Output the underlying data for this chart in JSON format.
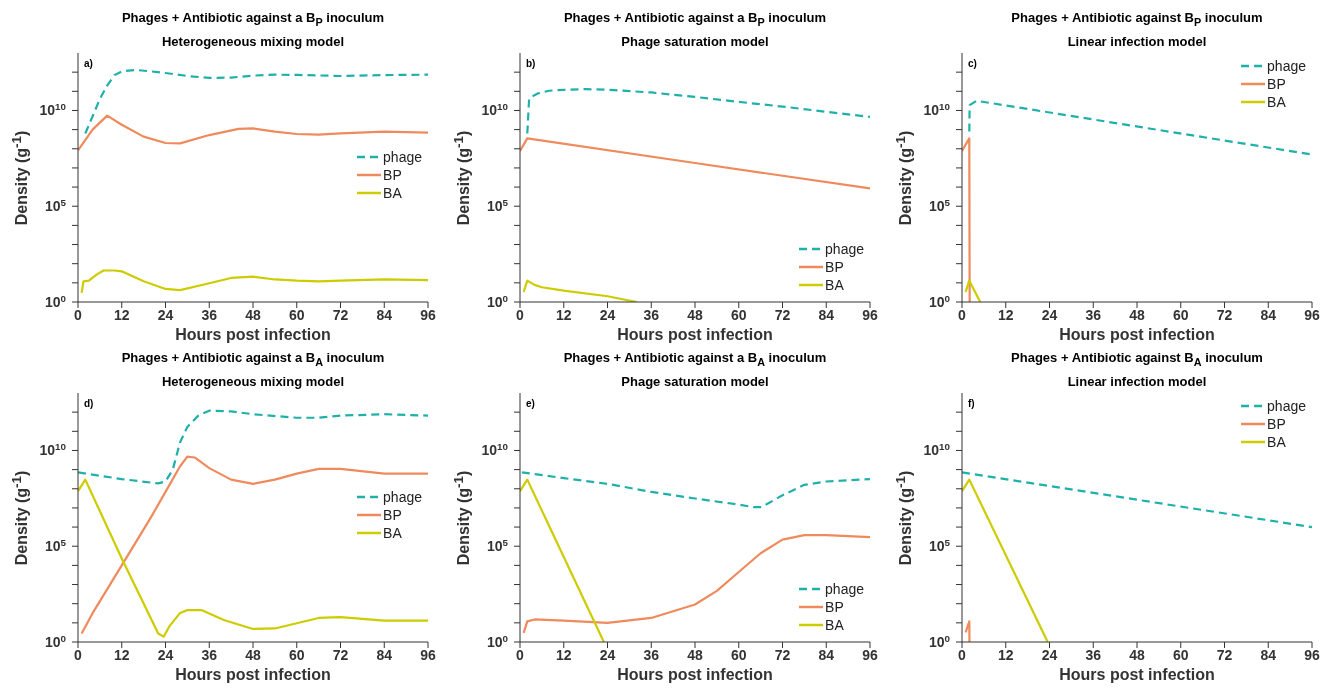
{
  "chart_data": [
    {
      "type": "line",
      "title": "Phages + Antibiotic against a B$_{P}$ inoculum",
      "subtitle": "Heterogeneous mixing model",
      "xlabel": "Hours post infection",
      "ylabel": "Density (g$^{-1}$)",
      "annotations": [
        "a)"
      ],
      "log": "y",
      "legend": "right",
      "xlim": [
        0,
        96
      ],
      "xticks": [
        0,
        12,
        24,
        36,
        48,
        60,
        72,
        84,
        96
      ],
      "ylim": [
        1,
        10000000000000.0
      ],
      "yticks": [
        {
          "value": 1,
          "label": "10$^{0}$"
        },
        {
          "value": 10,
          "label": null
        },
        {
          "value": 100,
          "label": null
        },
        {
          "value": 1000,
          "label": null
        },
        {
          "value": 10000,
          "label": null
        },
        {
          "value": 100000,
          "label": "10$^{5}$"
        },
        {
          "value": 1000000.0,
          "label": null
        },
        {
          "value": 10000000.0,
          "label": null
        },
        {
          "value": 100000000.0,
          "label": null
        },
        {
          "value": 1000000000.0,
          "label": null
        },
        {
          "value": 10000000000.0,
          "label": "10$^{10}$"
        },
        {
          "value": 100000000000.0,
          "label": null
        },
        {
          "value": 1000000000000.0,
          "label": null
        }
      ],
      "series": [
        {
          "name": "phage",
          "color": "#1fb0aa",
          "line_style": "dashed",
          "x": [
            2,
            4,
            6,
            8,
            10,
            12,
            16,
            20,
            24,
            30,
            36,
            42,
            48,
            54,
            60,
            72,
            84,
            96
          ],
          "values": [
            630000000.0,
            5000000000.0,
            40000000000.0,
            200000000000.0,
            700000000000.0,
            1100000000000.0,
            1300000000000.0,
            1100000000000.0,
            900000000000.0,
            630000000000.0,
            500000000000.0,
            520000000000.0,
            660000000000.0,
            740000000000.0,
            720000000000.0,
            630000000000.0,
            700000000000.0,
            740000000000.0
          ]
        },
        {
          "name": "BP",
          "color": "#ef8a5c",
          "line_style": "solid",
          "x": [
            0,
            4,
            8,
            12,
            18,
            24,
            28,
            36,
            44,
            48,
            54,
            60,
            66,
            72,
            84,
            96
          ],
          "values": [
            83000000.0,
            1000000000.0,
            5400000000.0,
            1800000000.0,
            430000000.0,
            200000000.0,
            190000000.0,
            520000000.0,
            1100000000.0,
            1150000000.0,
            790000000.0,
            590000000.0,
            550000000.0,
            630000000.0,
            790000000.0,
            690000000.0
          ]
        },
        {
          "name": "BA",
          "color": "#cccc00",
          "line_style": "solid",
          "x": [
            1,
            1.5,
            3,
            5,
            7,
            10,
            12,
            18,
            24,
            28,
            36,
            42,
            48,
            54,
            60,
            66,
            72,
            84,
            96
          ],
          "values": [
            3,
            12,
            13,
            26,
            44,
            44,
            40,
            12,
            4.8,
            4.2,
            9.5,
            18,
            21,
            15,
            13,
            12,
            13,
            15,
            14
          ]
        }
      ]
    },
    {
      "type": "line",
      "title": "Phages + Antibiotic against a B$_{P}$ inoculum",
      "subtitle": "Phage saturation model",
      "xlabel": "Hours post infection",
      "ylabel": "Density (g$^{-1}$)",
      "annotations": [
        "b)"
      ],
      "log": "y",
      "legend": "bottom right",
      "xlim": [
        0,
        96
      ],
      "xticks": [
        0,
        12,
        24,
        36,
        48,
        60,
        72,
        84,
        96
      ],
      "ylim": [
        1,
        10000000000000.0
      ],
      "yticks": [
        {
          "value": 1,
          "label": "10$^{0}$"
        },
        {
          "value": 10,
          "label": null
        },
        {
          "value": 100,
          "label": null
        },
        {
          "value": 1000,
          "label": null
        },
        {
          "value": 10000,
          "label": null
        },
        {
          "value": 100000,
          "label": "10$^{5}$"
        },
        {
          "value": 1000000.0,
          "label": null
        },
        {
          "value": 10000000.0,
          "label": null
        },
        {
          "value": 100000000.0,
          "label": null
        },
        {
          "value": 1000000000.0,
          "label": null
        },
        {
          "value": 10000000000.0,
          "label": "10$^{10}$"
        },
        {
          "value": 100000000000.0,
          "label": null
        },
        {
          "value": 1000000000000.0,
          "label": null
        }
      ],
      "series": [
        {
          "name": "phage",
          "color": "#1fb0aa",
          "line_style": "dashed",
          "x": [
            2,
            2.5,
            3,
            5,
            8,
            12,
            18,
            24,
            36,
            48,
            60,
            72,
            84,
            96
          ],
          "values": [
            630000000.0,
            40000000000.0,
            50000000000.0,
            79000000000.0,
            107000000000.0,
            120000000000.0,
            130000000000.0,
            120000000000.0,
            87000000000.0,
            51000000000.0,
            28000000000.0,
            16000000000.0,
            8500000000.0,
            4600000000.0
          ]
        },
        {
          "name": "BP",
          "color": "#ef8a5c",
          "line_style": "solid",
          "x": [
            0,
            2,
            48,
            96
          ],
          "values": [
            76000000.0,
            350000000.0,
            18000000.0,
            850000.0
          ]
        },
        {
          "name": "BA",
          "color": "#cccc00",
          "line_style": "solid",
          "x": [
            1,
            2,
            4,
            6,
            12,
            24,
            32
          ],
          "values": [
            3.4,
            13,
            7.8,
            5.9,
            3.9,
            2,
            1
          ]
        }
      ]
    },
    {
      "type": "line",
      "title": "Phages + Antibiotic against B$_{P}$ inoculum",
      "subtitle": "Linear infection model",
      "xlabel": "Hours post infection",
      "ylabel": "Density (g$^{-1}$)",
      "annotations": [
        "c)"
      ],
      "log": "y",
      "legend": "top right",
      "xlim": [
        0,
        96
      ],
      "xticks": [
        0,
        12,
        24,
        36,
        48,
        60,
        72,
        84,
        96
      ],
      "ylim": [
        1,
        10000000000000.0
      ],
      "yticks": [
        {
          "value": 1,
          "label": "10$^{0}$"
        },
        {
          "value": 10,
          "label": null
        },
        {
          "value": 100,
          "label": null
        },
        {
          "value": 1000,
          "label": null
        },
        {
          "value": 10000,
          "label": null
        },
        {
          "value": 100000,
          "label": "10$^{5}$"
        },
        {
          "value": 1000000.0,
          "label": null
        },
        {
          "value": 10000000.0,
          "label": null
        },
        {
          "value": 100000000.0,
          "label": null
        },
        {
          "value": 1000000000.0,
          "label": null
        },
        {
          "value": 10000000000.0,
          "label": "10$^{10}$"
        },
        {
          "value": 100000000000.0,
          "label": null
        },
        {
          "value": 1000000000000.0,
          "label": null
        }
      ],
      "series": [
        {
          "name": "phage",
          "color": "#1fb0aa",
          "line_style": "dashed",
          "x": [
            2,
            2.1,
            4,
            96
          ],
          "values": [
            790000000.0,
            19000000000.0,
            32000000000.0,
            50000000.0
          ]
        },
        {
          "name": "BP",
          "color": "#ef8a5c",
          "line_style": "solid",
          "x": [
            0,
            2,
            2.1
          ],
          "values": [
            76000000.0,
            350000000.0,
            1
          ]
        },
        {
          "name": "BA",
          "color": "#cccc00",
          "line_style": "solid",
          "x": [
            1,
            2,
            5
          ],
          "values": [
            3.4,
            13,
            1
          ]
        }
      ]
    },
    {
      "type": "line",
      "title": "Phages + Antibiotic against a B$_{A}$ inoculum",
      "subtitle": "Heterogeneous mixing model",
      "xlabel": "Hours post infection",
      "ylabel": "Density (g$^{-1}$)",
      "annotations": [
        "d)"
      ],
      "log": "y",
      "legend": "right",
      "xlim": [
        0,
        96
      ],
      "xticks": [
        0,
        12,
        24,
        36,
        48,
        60,
        72,
        84,
        96
      ],
      "ylim": [
        1,
        10000000000000.0
      ],
      "yticks": [
        {
          "value": 1,
          "label": "10$^{0}$"
        },
        {
          "value": 10,
          "label": null
        },
        {
          "value": 100,
          "label": null
        },
        {
          "value": 1000,
          "label": null
        },
        {
          "value": 10000,
          "label": null
        },
        {
          "value": 100000,
          "label": "10$^{5}$"
        },
        {
          "value": 1000000.0,
          "label": null
        },
        {
          "value": 10000000.0,
          "label": null
        },
        {
          "value": 100000000.0,
          "label": null
        },
        {
          "value": 1000000000.0,
          "label": null
        },
        {
          "value": 10000000000.0,
          "label": "10$^{10}$"
        },
        {
          "value": 100000000000.0,
          "label": null
        },
        {
          "value": 1000000000000.0,
          "label": null
        }
      ],
      "series": [
        {
          "name": "phage",
          "color": "#1fb0aa",
          "line_style": "dashed",
          "x": [
            0,
            12,
            22,
            24,
            26,
            28,
            30,
            33,
            36,
            42,
            48,
            60,
            66,
            72,
            84,
            96
          ],
          "values": [
            720000000.0,
            320000000.0,
            190000000.0,
            240000000.0,
            1000000000.0,
            27000000000.0,
            170000000000.0,
            660000000000.0,
            1200000000000.0,
            1100000000000.0,
            780000000000.0,
            510000000000.0,
            510000000000.0,
            660000000000.0,
            780000000000.0,
            660000000000.0
          ]
        },
        {
          "name": "BP",
          "color": "#ef8a5c",
          "line_style": "solid",
          "x": [
            1,
            2,
            4,
            12,
            20,
            24,
            28,
            30,
            32,
            36,
            42,
            48,
            54,
            60,
            66,
            72,
            84,
            96
          ],
          "values": [
            2.8,
            6.3,
            32,
            10000.0,
            3200000.0,
            69000000.0,
            1500000000.0,
            4800000000.0,
            4300000000.0,
            1200000000.0,
            300000000.0,
            180000000.0,
            300000000.0,
            620000000.0,
            1100000000.0,
            1100000000.0,
            620000000.0,
            620000000.0
          ]
        },
        {
          "name": "BA",
          "color": "#cccc00",
          "line_style": "solid",
          "x": [
            0,
            2,
            12,
            22,
            23.5,
            25,
            28,
            30,
            34,
            40,
            48,
            54,
            60,
            66,
            72,
            84,
            96
          ],
          "values": [
            76000000.0,
            300000000.0,
            23000.0,
            2.8,
            1.9,
            6.3,
            33,
            46,
            46,
            14,
            4.8,
            5.1,
            9.5,
            18,
            20,
            13,
            13
          ]
        }
      ]
    },
    {
      "type": "line",
      "title": "Phages + Antibiotic against a B$_{A}$ inoculum",
      "subtitle": "Phage saturation model",
      "xlabel": "Hours post infection",
      "ylabel": "Density (g$^{-1}$)",
      "annotations": [
        "e)"
      ],
      "log": "y",
      "legend": "bottom right",
      "xlim": [
        0,
        96
      ],
      "xticks": [
        0,
        12,
        24,
        36,
        48,
        60,
        72,
        84,
        96
      ],
      "ylim": [
        1,
        10000000000000.0
      ],
      "yticks": [
        {
          "value": 1,
          "label": "10$^{0}$"
        },
        {
          "value": 10,
          "label": null
        },
        {
          "value": 100,
          "label": null
        },
        {
          "value": 1000,
          "label": null
        },
        {
          "value": 10000,
          "label": null
        },
        {
          "value": 100000,
          "label": "10$^{5}$"
        },
        {
          "value": 1000000.0,
          "label": null
        },
        {
          "value": 10000000.0,
          "label": null
        },
        {
          "value": 100000000.0,
          "label": null
        },
        {
          "value": 1000000000.0,
          "label": null
        },
        {
          "value": 10000000000.0,
          "label": "10$^{10}$"
        },
        {
          "value": 100000000000.0,
          "label": null
        },
        {
          "value": 1000000000000.0,
          "label": null
        }
      ],
      "series": [
        {
          "name": "phage",
          "color": "#1fb0aa",
          "line_style": "dashed",
          "x": [
            0.5,
            12,
            24,
            36,
            48,
            60,
            64,
            66,
            68,
            72,
            78,
            84,
            96
          ],
          "values": [
            720000000.0,
            360000000.0,
            180000000.0,
            69000000.0,
            31000000.0,
            15000000.0,
            11000000.0,
            11000000.0,
            17000000.0,
            46000000.0,
            160000000.0,
            240000000.0,
            320000000.0
          ]
        },
        {
          "name": "BP",
          "color": "#ef8a5c",
          "line_style": "solid",
          "x": [
            1,
            2,
            4,
            12,
            24,
            36,
            48,
            54,
            60,
            66,
            72,
            78,
            84,
            96
          ],
          "values": [
            3,
            12,
            15,
            13,
            10,
            18,
            91,
            470,
            4500,
            43000,
            220000.0,
            380000.0,
            380000.0,
            300000.0
          ]
        },
        {
          "name": "BA",
          "color": "#cccc00",
          "line_style": "solid",
          "x": [
            0,
            2,
            23
          ],
          "values": [
            76000000.0,
            300000000.0,
            1
          ]
        }
      ]
    },
    {
      "type": "line",
      "title": "Phages + Antibiotic against B$_{A}$ inoculum",
      "subtitle": "Linear infection model",
      "xlabel": "Hours post infection",
      "ylabel": "Density (g$^{-1}$)",
      "annotations": [
        "f)"
      ],
      "log": "y",
      "legend": "top right",
      "xlim": [
        0,
        96
      ],
      "xticks": [
        0,
        12,
        24,
        36,
        48,
        60,
        72,
        84,
        96
      ],
      "ylim": [
        1,
        10000000000000.0
      ],
      "yticks": [
        {
          "value": 1,
          "label": "10$^{0}$"
        },
        {
          "value": 10,
          "label": null
        },
        {
          "value": 100,
          "label": null
        },
        {
          "value": 1000,
          "label": null
        },
        {
          "value": 10000,
          "label": null
        },
        {
          "value": 100000,
          "label": "10$^{5}$"
        },
        {
          "value": 1000000.0,
          "label": null
        },
        {
          "value": 10000000.0,
          "label": null
        },
        {
          "value": 100000000.0,
          "label": null
        },
        {
          "value": 1000000000.0,
          "label": null
        },
        {
          "value": 10000000000.0,
          "label": "10$^{10}$"
        },
        {
          "value": 100000000000.0,
          "label": null
        },
        {
          "value": 1000000000000.0,
          "label": null
        }
      ],
      "series": [
        {
          "name": "phage",
          "color": "#1fb0aa",
          "line_style": "dashed",
          "x": [
            0,
            96
          ],
          "values": [
            720000000.0,
            1000000.0
          ]
        },
        {
          "name": "BP",
          "color": "#ef8a5c",
          "line_style": "solid",
          "x": [
            1,
            2,
            2.05
          ],
          "values": [
            3.2,
            12,
            1
          ]
        },
        {
          "name": "BA",
          "color": "#cccc00",
          "line_style": "solid",
          "x": [
            0,
            2,
            23.5
          ],
          "values": [
            76000000.0,
            300000000.0,
            1
          ]
        }
      ]
    }
  ]
}
